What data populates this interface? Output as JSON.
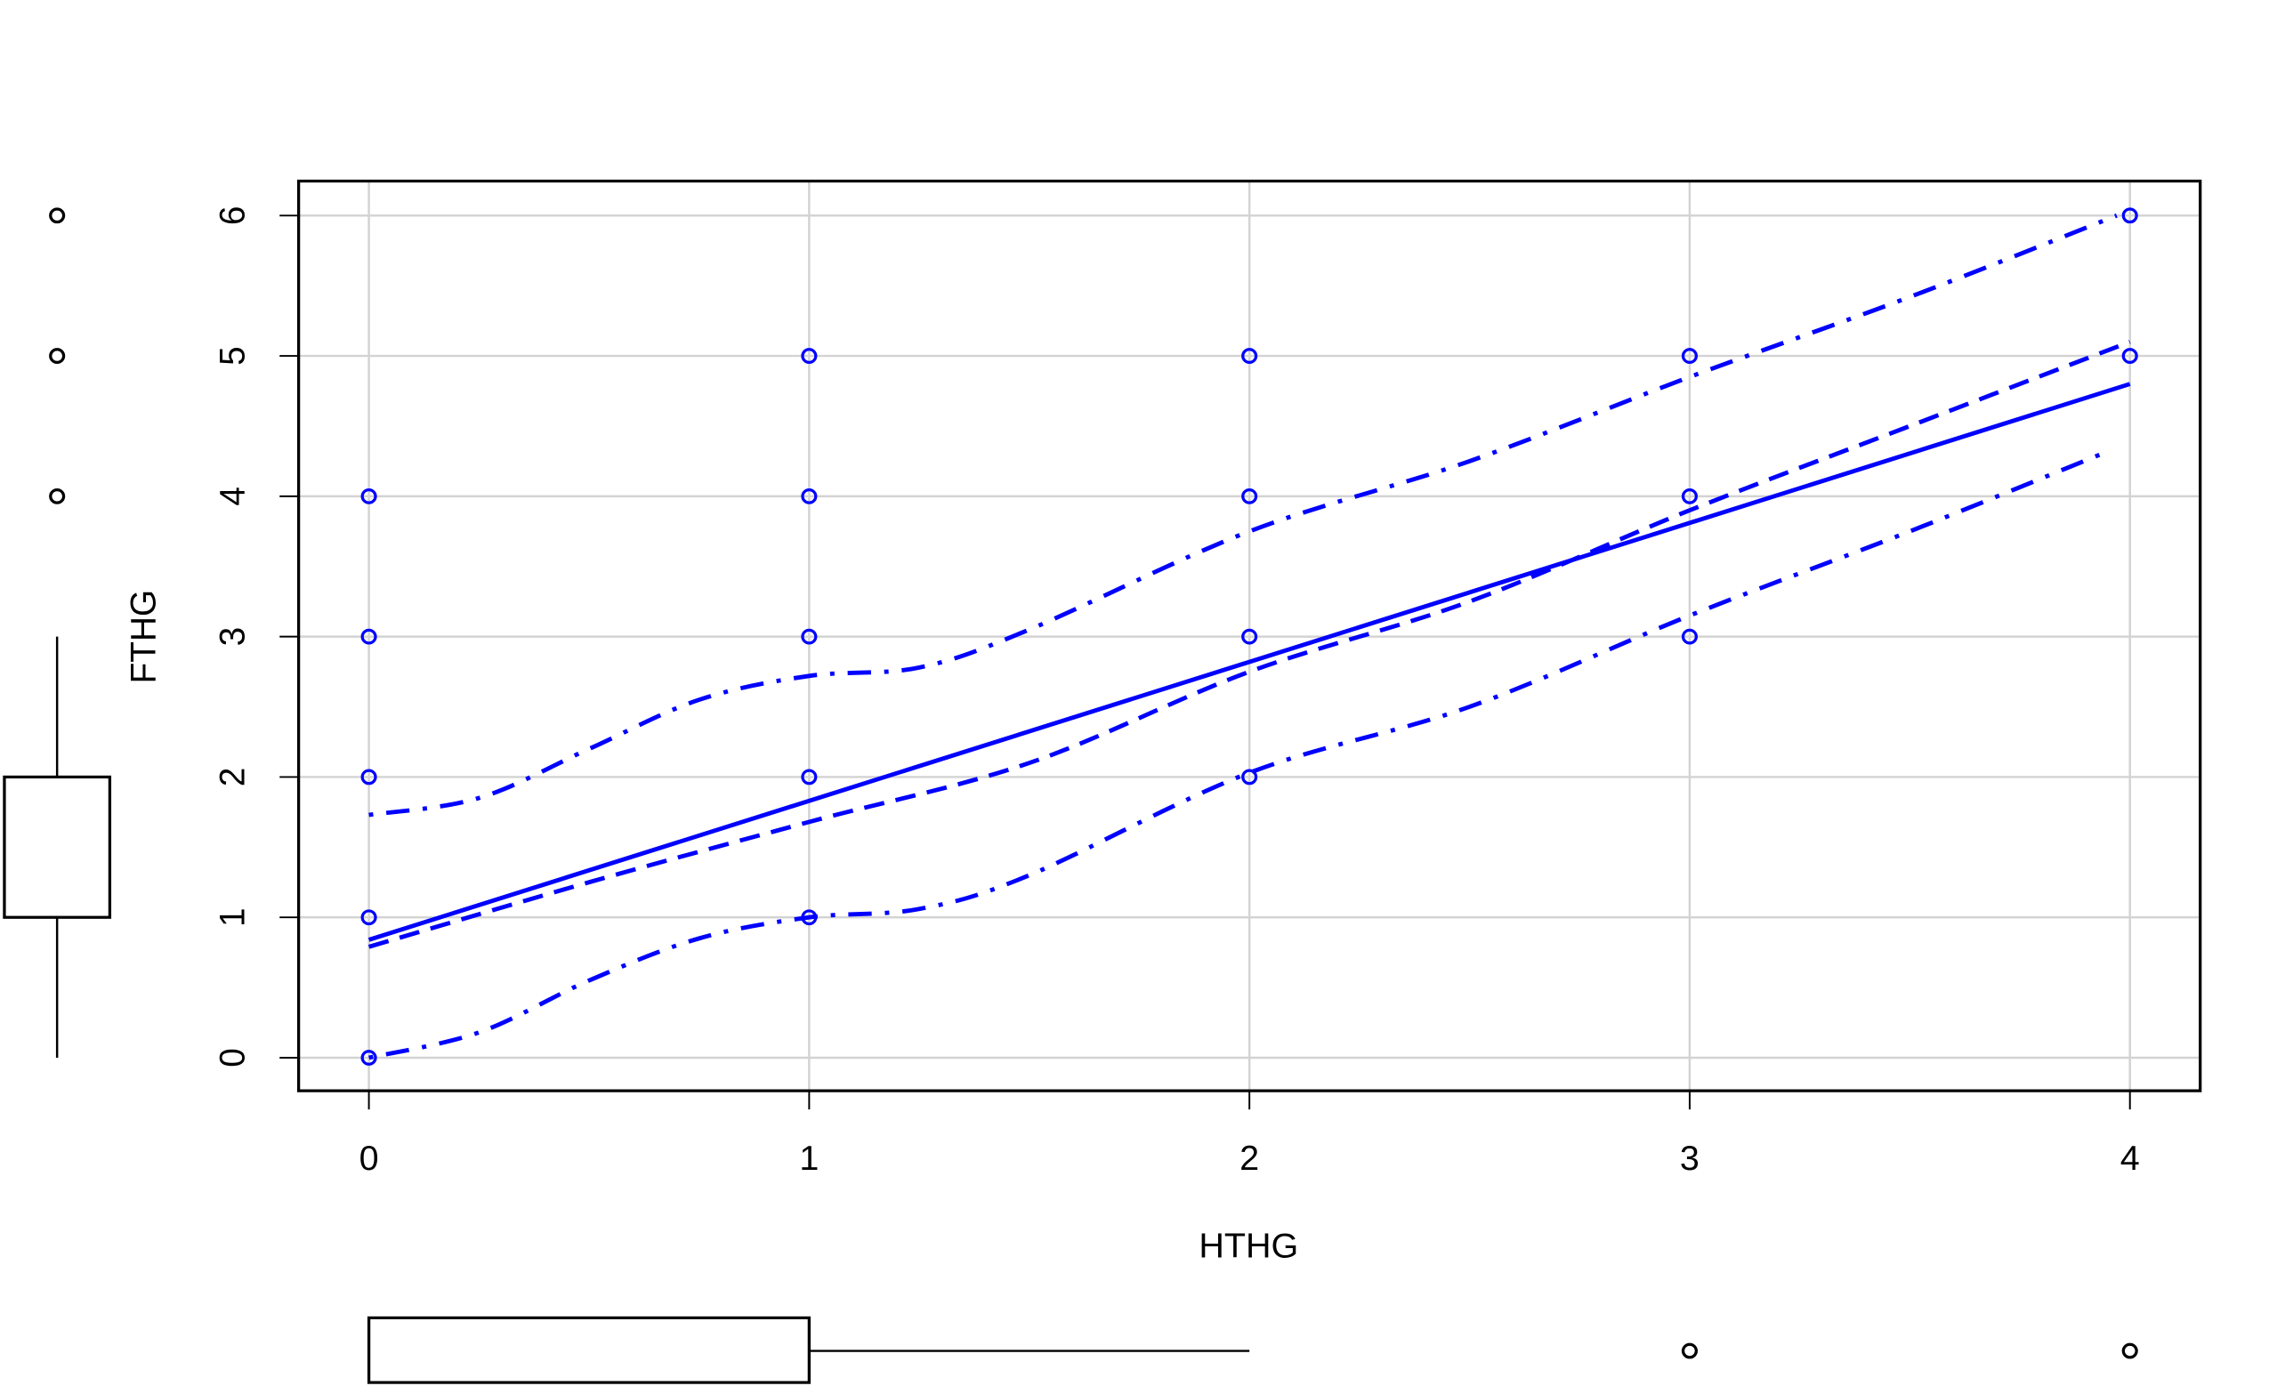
{
  "chart_data": {
    "type": "scatter",
    "xlabel": "HTHG",
    "ylabel": "FTHG",
    "xlim": [
      -0.16,
      4.16
    ],
    "ylim": [
      -0.24,
      6.24
    ],
    "xticks": [
      "0",
      "1",
      "2",
      "3",
      "4"
    ],
    "yticks": [
      "0",
      "1",
      "2",
      "3",
      "4",
      "5",
      "6"
    ],
    "grid": true,
    "point_color": "#0000ff",
    "points": [
      [
        0,
        0
      ],
      [
        0,
        1
      ],
      [
        0,
        2
      ],
      [
        0,
        3
      ],
      [
        0,
        4
      ],
      [
        1,
        1
      ],
      [
        1,
        2
      ],
      [
        1,
        3
      ],
      [
        1,
        4
      ],
      [
        1,
        5
      ],
      [
        2,
        2
      ],
      [
        2,
        3
      ],
      [
        2,
        4
      ],
      [
        2,
        5
      ],
      [
        3,
        3
      ],
      [
        3,
        4
      ],
      [
        3,
        5
      ],
      [
        4,
        5
      ],
      [
        4,
        6
      ]
    ],
    "regression_line": {
      "style": "solid",
      "intercept": 0.84,
      "slope": 0.99,
      "x_range": [
        0,
        4
      ]
    },
    "smoother": {
      "style": "dashed",
      "x": [
        0,
        0.5,
        1,
        1.5,
        2,
        2.5,
        3,
        3.5,
        4
      ],
      "y": [
        0.79,
        1.25,
        1.68,
        2.1,
        2.75,
        3.25,
        3.9,
        4.5,
        5.1
      ]
    },
    "smoother_upper": {
      "style": "dotdash",
      "x": [
        0,
        0.25,
        0.5,
        0.75,
        1,
        1.25,
        1.5,
        2,
        2.5,
        3,
        3.5,
        3.97
      ],
      "y": [
        1.73,
        1.85,
        2.2,
        2.55,
        2.72,
        2.78,
        3.05,
        3.75,
        4.25,
        4.85,
        5.42,
        6.0
      ]
    },
    "smoother_lower": {
      "style": "dotdash",
      "x": [
        0,
        0.25,
        0.5,
        0.75,
        1,
        1.25,
        1.5,
        2,
        2.5,
        3,
        3.5,
        3.95
      ],
      "y": [
        0,
        0.18,
        0.55,
        0.85,
        1.0,
        1.06,
        1.3,
        2.03,
        2.5,
        3.15,
        3.75,
        4.32
      ]
    },
    "boxplot_y": {
      "whisker_low": 0,
      "q1": 1,
      "median": 1,
      "q3": 2,
      "whisker_high": 3,
      "outliers": [
        4,
        5,
        6
      ]
    },
    "boxplot_x": {
      "whisker_low": 0,
      "q1": 0,
      "median": 0,
      "q3": 1,
      "whisker_high": 2,
      "outliers": [
        3,
        4
      ]
    }
  }
}
